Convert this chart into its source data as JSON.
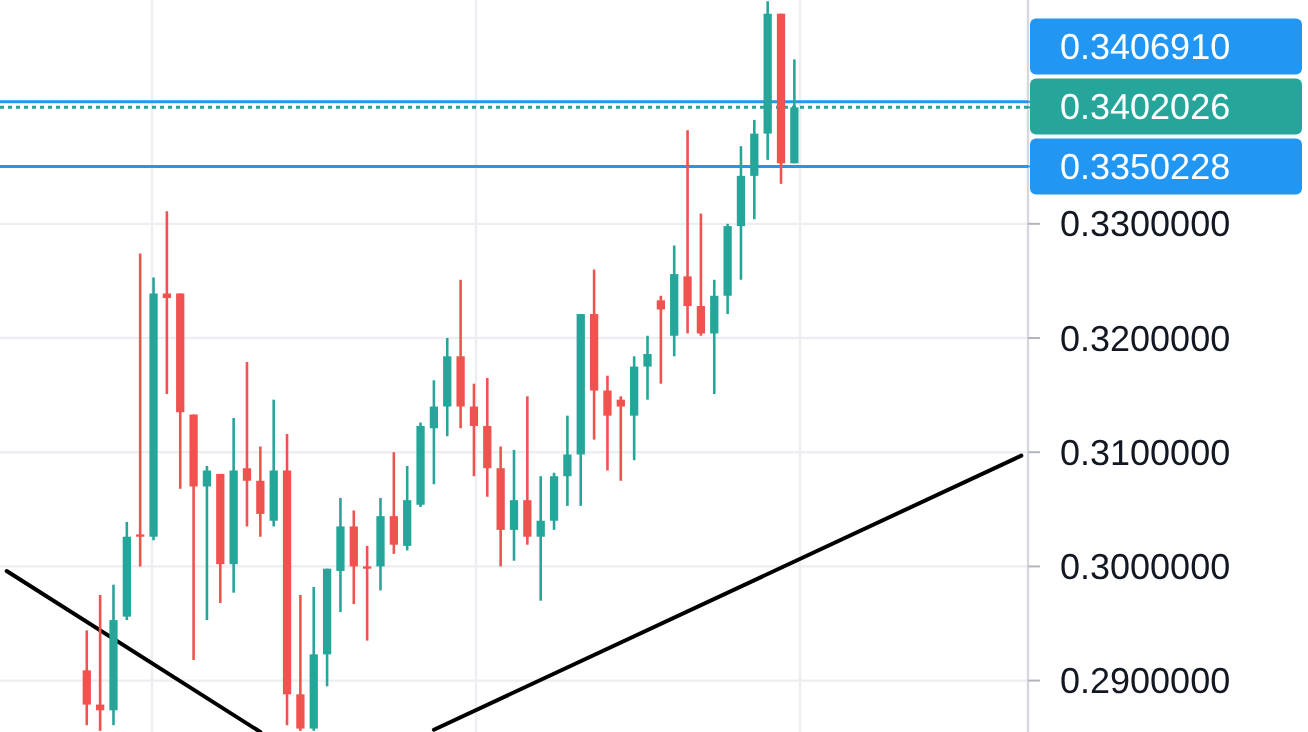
{
  "chart_data": {
    "type": "candlestick",
    "categories": [
      null,
      null,
      null,
      null,
      null,
      null,
      null,
      null,
      null,
      null,
      null,
      null,
      null,
      null,
      null,
      null,
      null,
      null,
      null,
      null,
      null,
      null,
      null,
      null,
      null,
      null,
      null,
      null,
      null,
      null,
      null,
      null,
      null,
      null,
      null,
      null,
      null,
      null,
      null,
      null,
      null,
      null,
      null,
      null,
      null,
      null,
      null,
      null,
      null,
      null,
      null,
      null,
      null,
      null,
      null,
      null,
      null,
      null,
      null,
      null,
      null,
      null,
      null,
      null,
      null,
      null,
      null,
      null,
      null,
      null,
      null,
      null,
      null,
      null,
      null,
      null,
      null
    ],
    "ohlc": [
      null,
      null,
      null,
      null,
      null,
      null,
      [
        0.2909,
        0.2944,
        0.2861,
        0.2879
      ],
      [
        0.2879,
        0.2975,
        0.2856,
        0.2874
      ],
      [
        0.2874,
        0.2984,
        0.2861,
        0.2953
      ],
      [
        0.2956,
        0.3039,
        0.2953,
        0.3026
      ],
      [
        0.3028,
        0.3274,
        0.3,
        0.3026
      ],
      [
        0.3026,
        0.3253,
        0.3023,
        0.3239
      ],
      [
        0.3239,
        0.3311,
        0.3151,
        0.3235
      ],
      [
        0.3239,
        0.3239,
        0.3068,
        0.3135
      ],
      [
        0.3133,
        0.3133,
        0.2918,
        0.307
      ],
      [
        0.307,
        0.3088,
        0.2953,
        0.3084
      ],
      [
        0.3081,
        0.3081,
        0.2968,
        0.3002
      ],
      [
        0.3002,
        0.313,
        0.2977,
        0.3084
      ],
      [
        0.3086,
        0.3179,
        0.3035,
        0.3075
      ],
      [
        0.3075,
        0.3105,
        0.3026,
        0.3046
      ],
      [
        0.304,
        0.3146,
        0.3035,
        0.3084
      ],
      [
        0.3084,
        0.3116,
        0.2861,
        0.2888
      ],
      [
        0.2888,
        0.2975,
        0.2856,
        0.2858
      ],
      [
        0.2858,
        0.2982,
        0.2856,
        0.2923
      ],
      [
        0.2923,
        0.2998,
        0.2895,
        0.2998
      ],
      [
        0.2996,
        0.306,
        0.296,
        0.3035
      ],
      [
        0.3035,
        0.3049,
        0.2967,
        0.3
      ],
      [
        0.3,
        0.3018,
        0.2935,
        0.2998
      ],
      [
        0.3,
        0.306,
        0.2979,
        0.3044
      ],
      [
        0.3044,
        0.31,
        0.3011,
        0.3019
      ],
      [
        0.3018,
        0.3088,
        0.3014,
        0.3058
      ],
      [
        0.3054,
        0.3126,
        0.3052,
        0.3123
      ],
      [
        0.3121,
        0.3163,
        0.3072,
        0.314
      ],
      [
        0.314,
        0.32,
        0.3114,
        0.3184
      ],
      [
        0.3184,
        0.3251,
        0.3121,
        0.314
      ],
      [
        0.314,
        0.316,
        0.3079,
        0.3123
      ],
      [
        0.3123,
        0.3165,
        0.3061,
        0.3086
      ],
      [
        0.3086,
        0.3105,
        0.3,
        0.3032
      ],
      [
        0.3032,
        0.3102,
        0.3005,
        0.3058
      ],
      [
        0.3058,
        0.3149,
        0.3019,
        0.3026
      ],
      [
        0.3026,
        0.3079,
        0.297,
        0.304
      ],
      [
        0.304,
        0.3082,
        0.3032,
        0.3079
      ],
      [
        0.3079,
        0.3132,
        0.3053,
        0.3098
      ],
      [
        0.3098,
        0.3221,
        0.3053,
        0.3221
      ],
      [
        0.3221,
        0.326,
        0.3111,
        0.3154
      ],
      [
        0.3154,
        0.3167,
        0.3084,
        0.3132
      ],
      [
        0.3146,
        0.3149,
        0.3075,
        0.314
      ],
      [
        0.3132,
        0.3184,
        0.3093,
        0.3175
      ],
      [
        0.3175,
        0.3202,
        0.3146,
        0.3186
      ],
      [
        0.3233,
        0.3237,
        0.316,
        0.3225
      ],
      [
        0.3202,
        0.3281,
        0.3184,
        0.3256
      ],
      [
        0.3254,
        0.3382,
        0.3204,
        0.3228
      ],
      [
        0.3228,
        0.3309,
        0.3202,
        0.3204
      ],
      [
        0.3204,
        0.3251,
        0.3151,
        0.3237
      ],
      [
        0.3237,
        0.33,
        0.3221,
        0.3298
      ],
      [
        0.3298,
        0.3368,
        0.3251,
        0.3342
      ],
      [
        0.3342,
        0.3391,
        0.3304,
        0.3379
      ],
      [
        0.3379,
        0.3495,
        0.3356,
        0.3484
      ],
      [
        0.3484,
        0.3484,
        0.3335,
        0.3353
      ],
      [
        0.3353,
        0.3444,
        0.3353,
        0.3402
      ],
      null,
      null,
      null,
      null,
      null,
      null,
      null,
      null,
      null,
      null,
      null,
      null,
      null,
      null,
      null,
      null,
      null
    ],
    "colors": [
      null,
      null,
      null,
      null,
      null,
      null,
      "#ef5350",
      "#ef5350",
      "#26a69a",
      "#26a69a",
      "#ef5350",
      "#26a69a",
      "#ef5350",
      "#ef5350",
      "#ef5350",
      "#26a69a",
      "#ef5350",
      "#26a69a",
      "#ef5350",
      "#ef5350",
      "#26a69a",
      "#ef5350",
      "#ef5350",
      "#26a69a",
      "#26a69a",
      "#26a69a",
      "#ef5350",
      "#ef5350",
      "#26a69a",
      "#ef5350",
      "#26a69a",
      "#26a69a",
      "#26a69a",
      "#26a69a",
      "#ef5350",
      "#ef5350",
      "#ef5350",
      "#ef5350",
      "#26a69a",
      "#ef5350",
      "#26a69a",
      "#26a69a",
      "#26a69a",
      "#26a69a",
      "#ef5350",
      "#ef5350",
      "#ef5350",
      "#26a69a",
      "#26a69a",
      "#ef5350",
      "#26a69a",
      "#ef5350",
      "#ef5350",
      "#26a69a",
      "#26a69a",
      "#26a69a",
      "#26a69a",
      "#26a69a",
      "#ef5350",
      "#26a69a",
      null,
      null,
      null,
      null,
      null,
      null,
      null,
      null,
      null,
      null,
      null,
      null,
      null,
      null,
      null,
      null,
      null
    ],
    "series": [
      {
        "type": "line",
        "values": [
          0.2996,
          null,
          null,
          null,
          null,
          null,
          null,
          null,
          null,
          null,
          null,
          null,
          null,
          null,
          null,
          null,
          null,
          null,
          null,
          0.2855,
          null,
          null,
          null,
          null,
          null,
          null,
          null,
          null,
          null,
          null,
          null,
          null,
          null,
          null,
          null,
          null,
          null,
          null,
          null,
          null,
          null,
          null,
          null,
          null,
          null,
          null,
          null,
          null,
          null,
          null,
          null,
          null,
          null,
          null,
          null,
          null,
          null,
          null,
          null,
          null,
          null,
          null,
          null,
          null,
          null,
          null,
          null,
          null,
          null,
          null,
          null,
          null,
          null,
          null,
          null,
          null,
          null
        ],
        "color": "#000000"
      },
      {
        "type": "line",
        "values": [
          null,
          null,
          null,
          null,
          null,
          null,
          null,
          null,
          null,
          null,
          null,
          null,
          null,
          null,
          null,
          null,
          null,
          null,
          null,
          null,
          null,
          null,
          null,
          null,
          null,
          null,
          null,
          null,
          null,
          null,
          null,
          null,
          0.2857,
          null,
          null,
          null,
          null,
          null,
          null,
          null,
          null,
          null,
          null,
          null,
          null,
          null,
          null,
          null,
          null,
          null,
          null,
          null,
          null,
          null,
          null,
          null,
          null,
          null,
          null,
          null,
          null,
          null,
          null,
          null,
          null,
          null,
          null,
          null,
          null,
          null,
          null,
          null,
          null,
          null,
          null,
          null,
          0.3097
        ],
        "color": "#000000"
      }
    ],
    "ylim": [
      0.2855,
      0.3496
    ],
    "yticks": [
      {
        "value": 0.29,
        "label": "0.2900000"
      },
      {
        "value": 0.3,
        "label": "0.3000000"
      },
      {
        "value": 0.31,
        "label": "0.3100000"
      },
      {
        "value": 0.32,
        "label": "0.3200000"
      },
      {
        "value": 0.33,
        "label": "0.3300000"
      }
    ],
    "tick_labels": "y",
    "grid": true,
    "ref_lines": [
      {
        "axis": "y",
        "value": 0.340691,
        "label": "0.3406910",
        "color": "#2196f3",
        "line_style": "solid"
      },
      {
        "axis": "y",
        "value": 0.3402026,
        "label": "0.3402026",
        "color": "#26a69a",
        "line_style": "dotted"
      },
      {
        "axis": "y",
        "value": 0.3350228,
        "label": "0.3350228",
        "color": "#2196f3",
        "line_style": "solid"
      }
    ]
  }
}
